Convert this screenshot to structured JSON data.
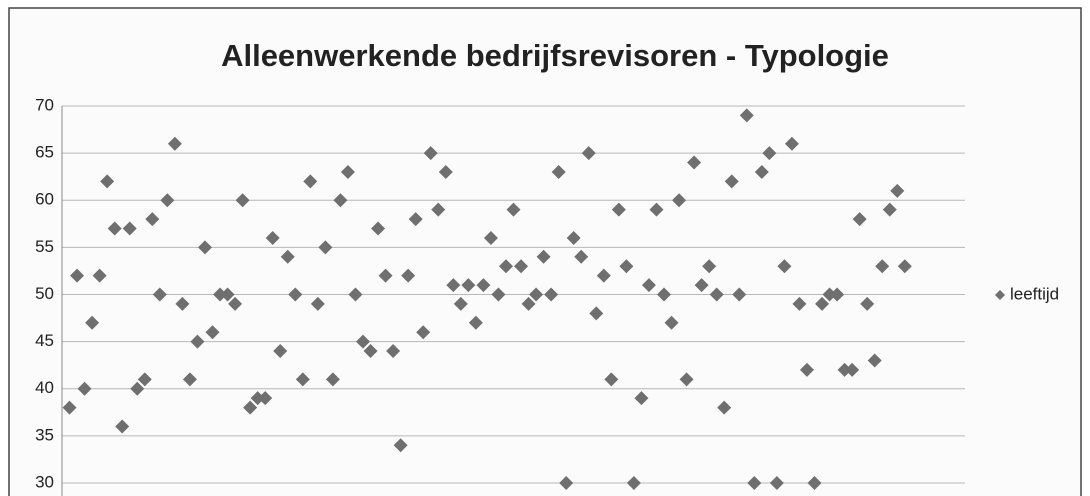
{
  "chart_data": {
    "type": "scatter",
    "title": "Alleenwerkende bedrijfsrevisoren - Typologie",
    "series": [
      {
        "name": "leeftijd",
        "color": "#6f6f6f",
        "x": [
          1,
          2,
          3,
          4,
          5,
          6,
          7,
          8,
          9,
          10,
          11,
          12,
          13,
          14,
          15,
          16,
          17,
          18,
          19,
          20,
          21,
          22,
          23,
          24,
          25,
          26,
          27,
          28,
          29,
          30,
          31,
          32,
          33,
          34,
          35,
          36,
          37,
          38,
          39,
          40,
          41,
          42,
          43,
          44,
          45,
          46,
          47,
          48,
          49,
          50,
          51,
          52,
          53,
          54,
          55,
          56,
          57,
          58,
          59,
          60,
          61,
          62,
          63,
          64,
          65,
          66,
          67,
          68,
          69,
          70,
          71,
          72,
          73,
          74,
          75,
          76,
          77,
          78,
          79,
          80,
          81,
          82,
          83,
          84,
          85,
          86,
          87,
          88,
          89,
          90,
          91,
          92,
          93,
          94,
          95,
          96,
          97,
          98,
          99,
          100,
          101,
          102,
          103,
          104,
          105,
          106,
          107,
          108,
          109,
          110,
          111,
          112
        ],
        "values": [
          38,
          52,
          40,
          47,
          52,
          62,
          57,
          36,
          57,
          40,
          41,
          58,
          50,
          60,
          66,
          49,
          41,
          45,
          55,
          46,
          50,
          50,
          49,
          60,
          38,
          39,
          39,
          56,
          44,
          54,
          50,
          41,
          62,
          49,
          55,
          41,
          60,
          63,
          50,
          45,
          44,
          57,
          52,
          44,
          34,
          52,
          58,
          46,
          65,
          59,
          63,
          51,
          49,
          51,
          47,
          51,
          56,
          50,
          53,
          59,
          53,
          49,
          50,
          54,
          50,
          63,
          30,
          56,
          54,
          65,
          48,
          52,
          41,
          59,
          53,
          30,
          39,
          51,
          59,
          50,
          47,
          60,
          41,
          64,
          51,
          53,
          50,
          38,
          62,
          50,
          69,
          30,
          63,
          65,
          30,
          53,
          66,
          49,
          42,
          30,
          49,
          50,
          50,
          42,
          42,
          58,
          49,
          43,
          53,
          59,
          61,
          53
        ]
      }
    ],
    "xlim": [
      0,
      120
    ],
    "ylim": [
      30,
      70
    ],
    "yticks": [
      30,
      35,
      40,
      45,
      50,
      55,
      60,
      65,
      70
    ],
    "grid": true,
    "legend": "right"
  }
}
